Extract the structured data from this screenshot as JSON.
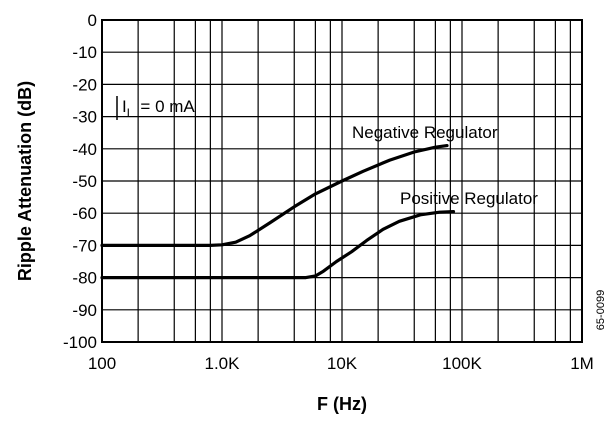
{
  "chart_data": {
    "type": "line",
    "title": "",
    "xlabel": "F (Hz)",
    "ylabel": "Ripple Attenuation (dB)",
    "x_scale": "log",
    "xlim": [
      100,
      1000000
    ],
    "ylim": [
      -100,
      0
    ],
    "grid": true,
    "x_ticks": [
      100,
      1000,
      10000,
      100000,
      1000000
    ],
    "x_tick_labels": [
      "100",
      "1.0K",
      "10K",
      "100K",
      "1M"
    ],
    "y_ticks": [
      0,
      -10,
      -20,
      -30,
      -40,
      -50,
      -60,
      -70,
      -80,
      -90,
      -100
    ],
    "y_tick_labels": [
      "0",
      "-10",
      "-20",
      "-30",
      "-40",
      "-50",
      "-60",
      "-70",
      "-80",
      "-90",
      "-100"
    ],
    "series": [
      {
        "name": "Negative Regulator",
        "x": [
          100,
          800,
          1000,
          1300,
          1700,
          2500,
          4000,
          6000,
          10000,
          15000,
          25000,
          40000,
          60000,
          75000
        ],
        "y": [
          -70,
          -70,
          -69.8,
          -69,
          -67,
          -63,
          -58,
          -54,
          -50,
          -47,
          -43.5,
          -41,
          -39.5,
          -39
        ]
      },
      {
        "name": "Positive Regulator",
        "x": [
          100,
          5000,
          6000,
          7000,
          9000,
          12000,
          16000,
          22000,
          30000,
          45000,
          65000,
          85000
        ],
        "y": [
          -80,
          -80,
          -79.5,
          -78,
          -75,
          -72,
          -68.5,
          -65,
          -62.5,
          -60.5,
          -59.7,
          -59.5
        ]
      }
    ],
    "annotations": [
      {
        "text": "I",
        "subscript": "L",
        "suffix": "=  0 mA"
      },
      {
        "text": "Negative Regulator"
      },
      {
        "text": "Positive Regulator"
      },
      {
        "text": "65-0099"
      }
    ]
  }
}
